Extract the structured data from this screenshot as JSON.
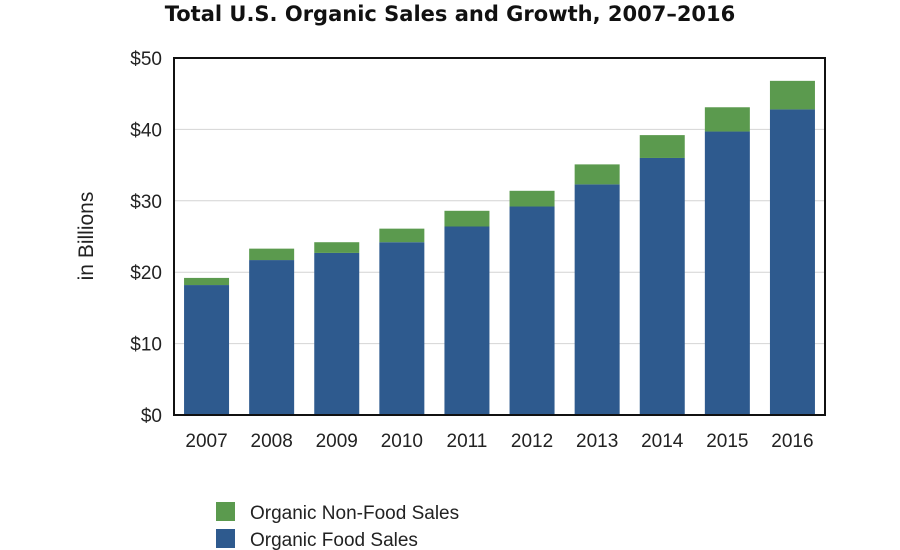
{
  "chart_data": {
    "type": "bar",
    "stacked": true,
    "title": "Total U.S. Organic Sales and Growth, 2007–2016",
    "xlabel": "",
    "ylabel": "in Billions",
    "categories": [
      "2007",
      "2008",
      "2009",
      "2010",
      "2011",
      "2012",
      "2013",
      "2014",
      "2015",
      "2016"
    ],
    "series": [
      {
        "name": "Organic Food Sales",
        "color": "#2e5a8e",
        "values": [
          18.2,
          21.7,
          22.7,
          24.2,
          26.4,
          29.2,
          32.3,
          36.0,
          39.7,
          42.8
        ]
      },
      {
        "name": "Organic Non-Food Sales",
        "color": "#5b9a4e",
        "values": [
          1.0,
          1.6,
          1.5,
          1.9,
          2.2,
          2.2,
          2.8,
          3.2,
          3.4,
          4.0
        ]
      }
    ],
    "ylim": [
      0,
      50
    ],
    "yticks": [
      0,
      10,
      20,
      30,
      40,
      50
    ],
    "ytick_labels": [
      "$0",
      "$10",
      "$20",
      "$30",
      "$40",
      "$50"
    ],
    "grid": true,
    "legend_position": "bottom-left",
    "legend_order": [
      "Organic Non-Food Sales",
      "Organic Food Sales"
    ]
  }
}
